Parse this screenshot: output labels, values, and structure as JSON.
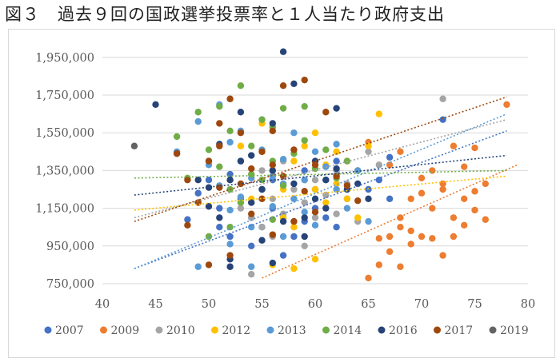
{
  "page": {
    "title": "図３　過去９回の国政選挙投票率と１人当たり政府支出"
  },
  "chart_data": {
    "type": "scatter",
    "title": "図３　過去９回の国政選挙投票率と１人当たり政府支出",
    "xlabel": "",
    "ylabel": "",
    "xlim": [
      40,
      80
    ],
    "ylim": [
      750000,
      2000000
    ],
    "x_ticks": [
      40,
      45,
      50,
      55,
      60,
      65,
      70,
      75,
      80
    ],
    "y_ticks": [
      750000,
      950000,
      1150000,
      1350000,
      1550000,
      1750000,
      1950000
    ],
    "y_tick_labels": [
      "750,000",
      "950,000",
      "1,150,000",
      "1,350,000",
      "1,550,000",
      "1,750,000",
      "1,950,000"
    ],
    "grid": "horizontal",
    "legend_position": "bottom",
    "trendlines": "linear, dotted, one per series",
    "series": [
      {
        "name": "2007",
        "color": "#4472C4",
        "trend": [
          [
            43,
            830000
          ],
          [
            78,
            1560000
          ]
        ],
        "points": [
          [
            48,
            1090000
          ],
          [
            49,
            1230000
          ],
          [
            50,
            1300000
          ],
          [
            50,
            1400000
          ],
          [
            51,
            1150000
          ],
          [
            51,
            1050000
          ],
          [
            52,
            1330000
          ],
          [
            52,
            1000000
          ],
          [
            53,
            1200000
          ],
          [
            53,
            1400000
          ],
          [
            54,
            1100000
          ],
          [
            54,
            950000
          ],
          [
            55,
            1250000
          ],
          [
            55,
            1050000
          ],
          [
            56,
            1150000
          ],
          [
            56,
            1300000
          ],
          [
            57,
            900000
          ],
          [
            57,
            1100000
          ],
          [
            58,
            1200000
          ],
          [
            58,
            1000000
          ],
          [
            59,
            1350000
          ],
          [
            59,
            1080000
          ],
          [
            60,
            1250000
          ],
          [
            60,
            1150000
          ],
          [
            61,
            1100000
          ],
          [
            61,
            1300000
          ],
          [
            62,
            1050000
          ],
          [
            62,
            1400000
          ],
          [
            63,
            1200000
          ],
          [
            64,
            1350000
          ],
          [
            65,
            1250000
          ],
          [
            66,
            1300000
          ],
          [
            67,
            1200000
          ],
          [
            67,
            1420000
          ],
          [
            72,
            1620000
          ]
        ]
      },
      {
        "name": "2009",
        "color": "#ED7D31",
        "trend": [
          [
            55,
            780000
          ],
          [
            79,
            1380000
          ]
        ],
        "points": [
          [
            65,
            780000
          ],
          [
            66,
            850000
          ],
          [
            66,
            990000
          ],
          [
            67,
            1000000
          ],
          [
            67,
            920000
          ],
          [
            68,
            840000
          ],
          [
            68,
            1050000
          ],
          [
            68,
            1100000
          ],
          [
            69,
            1030000
          ],
          [
            69,
            1200000
          ],
          [
            69,
            960000
          ],
          [
            70,
            1230000
          ],
          [
            70,
            1000000
          ],
          [
            70,
            1310000
          ],
          [
            71,
            990000
          ],
          [
            71,
            1150000
          ],
          [
            71,
            1350000
          ],
          [
            72,
            900000
          ],
          [
            72,
            1250000
          ],
          [
            72,
            1280000
          ],
          [
            73,
            1100000
          ],
          [
            73,
            1000000
          ],
          [
            73,
            1480000
          ],
          [
            74,
            1200000
          ],
          [
            74,
            1370000
          ],
          [
            74,
            1060000
          ],
          [
            75,
            1240000
          ],
          [
            75,
            1140000
          ],
          [
            75,
            1470000
          ],
          [
            76,
            1280000
          ],
          [
            76,
            1090000
          ],
          [
            78,
            1700000
          ],
          [
            65,
            1500000
          ],
          [
            67,
            1380000
          ],
          [
            68,
            1450000
          ]
        ]
      },
      {
        "name": "2010",
        "color": "#A5A5A5",
        "trend": [
          [
            43,
            1100000
          ],
          [
            78,
            1620000
          ]
        ],
        "points": [
          [
            52,
            1300000
          ],
          [
            53,
            1150000
          ],
          [
            54,
            1100000
          ],
          [
            55,
            1050000
          ],
          [
            55,
            1350000
          ],
          [
            56,
            1200000
          ],
          [
            56,
            1000000
          ],
          [
            57,
            1120000
          ],
          [
            57,
            1400000
          ],
          [
            58,
            1250000
          ],
          [
            58,
            1080000
          ],
          [
            59,
            1180000
          ],
          [
            60,
            1300000
          ],
          [
            60,
            1100000
          ],
          [
            61,
            1220000
          ],
          [
            62,
            1350000
          ],
          [
            62,
            1120000
          ],
          [
            63,
            1280000
          ],
          [
            64,
            1080000
          ],
          [
            65,
            1450000
          ],
          [
            66,
            1380000
          ],
          [
            72,
            1730000
          ],
          [
            54,
            800000
          ],
          [
            59,
            950000
          ]
        ]
      },
      {
        "name": "2012",
        "color": "#FFC000",
        "trend": [
          [
            43,
            1140000
          ],
          [
            78,
            1320000
          ]
        ],
        "points": [
          [
            54,
            1200000
          ],
          [
            55,
            1450000
          ],
          [
            55,
            1600000
          ],
          [
            56,
            1350000
          ],
          [
            57,
            1250000
          ],
          [
            57,
            1100000
          ],
          [
            58,
            1400000
          ],
          [
            58,
            1050000
          ],
          [
            59,
            1300000
          ],
          [
            59,
            1480000
          ],
          [
            60,
            1250000
          ],
          [
            60,
            1550000
          ],
          [
            61,
            1380000
          ],
          [
            61,
            1180000
          ],
          [
            62,
            1450000
          ],
          [
            62,
            1280000
          ],
          [
            63,
            1400000
          ],
          [
            63,
            1200000
          ],
          [
            64,
            1350000
          ],
          [
            64,
            1100000
          ],
          [
            65,
            1480000
          ],
          [
            66,
            1650000
          ],
          [
            60,
            880000
          ],
          [
            58,
            830000
          ],
          [
            56,
            850000
          ],
          [
            53,
            1480000
          ]
        ]
      },
      {
        "name": "2013",
        "color": "#5B9BD5",
        "trend": [
          [
            43,
            830000
          ],
          [
            78,
            1650000
          ]
        ],
        "points": [
          [
            47,
            1450000
          ],
          [
            49,
            1610000
          ],
          [
            50,
            1380000
          ],
          [
            51,
            1700000
          ],
          [
            51,
            1270000
          ],
          [
            52,
            1500000
          ],
          [
            52,
            1140000
          ],
          [
            53,
            1210000
          ],
          [
            53,
            1560000
          ],
          [
            54,
            1310000
          ],
          [
            54,
            1050000
          ],
          [
            55,
            1460000
          ],
          [
            55,
            1620000
          ],
          [
            56,
            1320000
          ],
          [
            56,
            1160000
          ],
          [
            57,
            1410000
          ],
          [
            57,
            1280000
          ],
          [
            58,
            1200000
          ],
          [
            58,
            1550000
          ],
          [
            59,
            1300000
          ],
          [
            59,
            1130000
          ],
          [
            60,
            1450000
          ],
          [
            60,
            1060000
          ],
          [
            61,
            1370000
          ],
          [
            62,
            1250000
          ],
          [
            62,
            1490000
          ],
          [
            63,
            1150000
          ],
          [
            64,
            1350000
          ],
          [
            65,
            1080000
          ],
          [
            55,
            1250000
          ],
          [
            54,
            840000
          ],
          [
            52,
            960000
          ],
          [
            49,
            840000
          ],
          [
            57,
            1000000
          ]
        ]
      },
      {
        "name": "2014",
        "color": "#70AD47",
        "trend": [
          [
            43,
            1310000
          ],
          [
            78,
            1350000
          ]
        ],
        "points": [
          [
            47,
            1530000
          ],
          [
            48,
            1310000
          ],
          [
            49,
            1660000
          ],
          [
            50,
            1460000
          ],
          [
            51,
            1690000
          ],
          [
            51,
            1370000
          ],
          [
            52,
            1560000
          ],
          [
            52,
            1250000
          ],
          [
            53,
            1800000
          ],
          [
            53,
            1180000
          ],
          [
            54,
            1480000
          ],
          [
            54,
            1330000
          ],
          [
            55,
            1620000
          ],
          [
            55,
            1300000
          ],
          [
            56,
            1400000
          ],
          [
            56,
            1580000
          ],
          [
            57,
            1680000
          ],
          [
            57,
            1270000
          ],
          [
            58,
            1440000
          ],
          [
            59,
            1690000
          ],
          [
            59,
            1510000
          ],
          [
            60,
            1360000
          ],
          [
            61,
            1460000
          ],
          [
            62,
            1310000
          ],
          [
            63,
            1400000
          ],
          [
            50,
            1000000
          ],
          [
            52,
            1050000
          ],
          [
            56,
            1090000
          ]
        ]
      },
      {
        "name": "2016",
        "color": "#264478",
        "trend": [
          [
            43,
            1220000
          ],
          [
            78,
            1430000
          ]
        ],
        "points": [
          [
            45,
            1700000
          ],
          [
            47,
            1440000
          ],
          [
            49,
            1300000
          ],
          [
            50,
            1260000
          ],
          [
            50,
            1160000
          ],
          [
            51,
            1490000
          ],
          [
            51,
            1100000
          ],
          [
            52,
            1300000
          ],
          [
            52,
            880000
          ],
          [
            53,
            1400000
          ],
          [
            53,
            1660000
          ],
          [
            54,
            1180000
          ],
          [
            54,
            1430000
          ],
          [
            55,
            980000
          ],
          [
            55,
            1250000
          ],
          [
            56,
            1350000
          ],
          [
            56,
            860000
          ],
          [
            57,
            1980000
          ],
          [
            57,
            1080000
          ],
          [
            58,
            1810000
          ],
          [
            58,
            1280000
          ],
          [
            59,
            1100000
          ],
          [
            59,
            1000000
          ],
          [
            60,
            1400000
          ],
          [
            60,
            1200000
          ],
          [
            61,
            1300000
          ],
          [
            61,
            1150000
          ],
          [
            62,
            1680000
          ],
          [
            62,
            1360000
          ],
          [
            63,
            1250000
          ],
          [
            64,
            1280000
          ],
          [
            65,
            1200000
          ],
          [
            52,
            840000
          ],
          [
            56,
            1600000
          ]
        ]
      },
      {
        "name": "2017",
        "color": "#9E480E",
        "trend": [
          [
            43,
            1080000
          ],
          [
            78,
            1740000
          ]
        ],
        "points": [
          [
            47,
            1440000
          ],
          [
            48,
            1060000
          ],
          [
            49,
            1180000
          ],
          [
            50,
            850000
          ],
          [
            50,
            1400000
          ],
          [
            51,
            1260000
          ],
          [
            51,
            1480000
          ],
          [
            52,
            900000
          ],
          [
            52,
            1730000
          ],
          [
            53,
            1550000
          ],
          [
            53,
            1280000
          ],
          [
            54,
            1120000
          ],
          [
            54,
            1360000
          ],
          [
            55,
            1450000
          ],
          [
            55,
            1200000
          ],
          [
            56,
            1010000
          ],
          [
            56,
            1380000
          ],
          [
            57,
            1800000
          ],
          [
            57,
            1320000
          ],
          [
            58,
            1080000
          ],
          [
            58,
            1460000
          ],
          [
            59,
            1830000
          ],
          [
            59,
            1240000
          ],
          [
            60,
            1380000
          ],
          [
            60,
            1130000
          ],
          [
            61,
            1660000
          ],
          [
            62,
            1320000
          ],
          [
            63,
            1270000
          ],
          [
            64,
            1190000
          ],
          [
            56,
            1560000
          ],
          [
            51,
            1600000
          ],
          [
            48,
            1300000
          ]
        ]
      },
      {
        "name": "2019",
        "color": "#636363",
        "trend": null,
        "points": [
          [
            43,
            1480000
          ]
        ]
      }
    ]
  }
}
